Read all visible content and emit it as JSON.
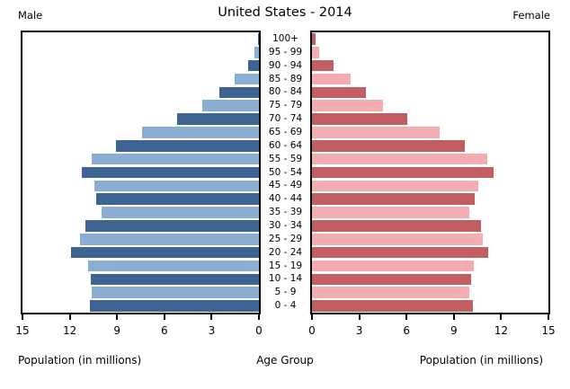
{
  "header": {
    "left_label": "Male",
    "title": "United States - 2014",
    "right_label": "Female"
  },
  "captions": {
    "left": "Population (in millions)",
    "center": "Age Group",
    "right": "Population (in millions)"
  },
  "colors": {
    "male_dark": "#3e6494",
    "male_light": "#8aadd4",
    "female_dark": "#c25e62",
    "female_light": "#f3acaf",
    "axis": "#000000",
    "background": "#ffffff"
  },
  "chart_data": {
    "type": "bar",
    "subtype": "population-pyramid",
    "title": "United States - 2014",
    "xlabel": "Population (in millions)",
    "ylabel": "Age Group",
    "xlim": [
      0,
      15
    ],
    "male_axis_ticks": [
      15,
      12,
      9,
      6,
      3,
      0
    ],
    "female_axis_ticks": [
      0,
      3,
      6,
      9,
      12,
      15
    ],
    "grid": false,
    "categories_top_to_bottom": [
      "100+",
      "95 - 99",
      "90 - 94",
      "85 - 89",
      "80 - 84",
      "75 - 79",
      "70 - 74",
      "65 - 69",
      "60 - 64",
      "55 - 59",
      "50 - 54",
      "45 - 49",
      "40 - 44",
      "35 - 39",
      "30 - 34",
      "25 - 29",
      "20 - 24",
      "15 - 19",
      "10 - 14",
      "5 - 9",
      "0 - 4"
    ],
    "series": [
      {
        "name": "Male",
        "values": [
          0.07,
          0.3,
          0.7,
          1.55,
          2.5,
          3.6,
          5.2,
          7.4,
          9.05,
          10.6,
          11.25,
          10.45,
          10.3,
          10.0,
          11.0,
          11.35,
          11.9,
          10.85,
          10.65,
          10.6,
          10.75
        ]
      },
      {
        "name": "Female",
        "values": [
          0.2,
          0.45,
          1.35,
          2.45,
          3.45,
          4.5,
          6.05,
          8.1,
          9.7,
          11.1,
          11.5,
          10.55,
          10.35,
          10.0,
          10.7,
          10.85,
          11.2,
          10.25,
          10.1,
          10.0,
          10.2
        ]
      }
    ]
  }
}
